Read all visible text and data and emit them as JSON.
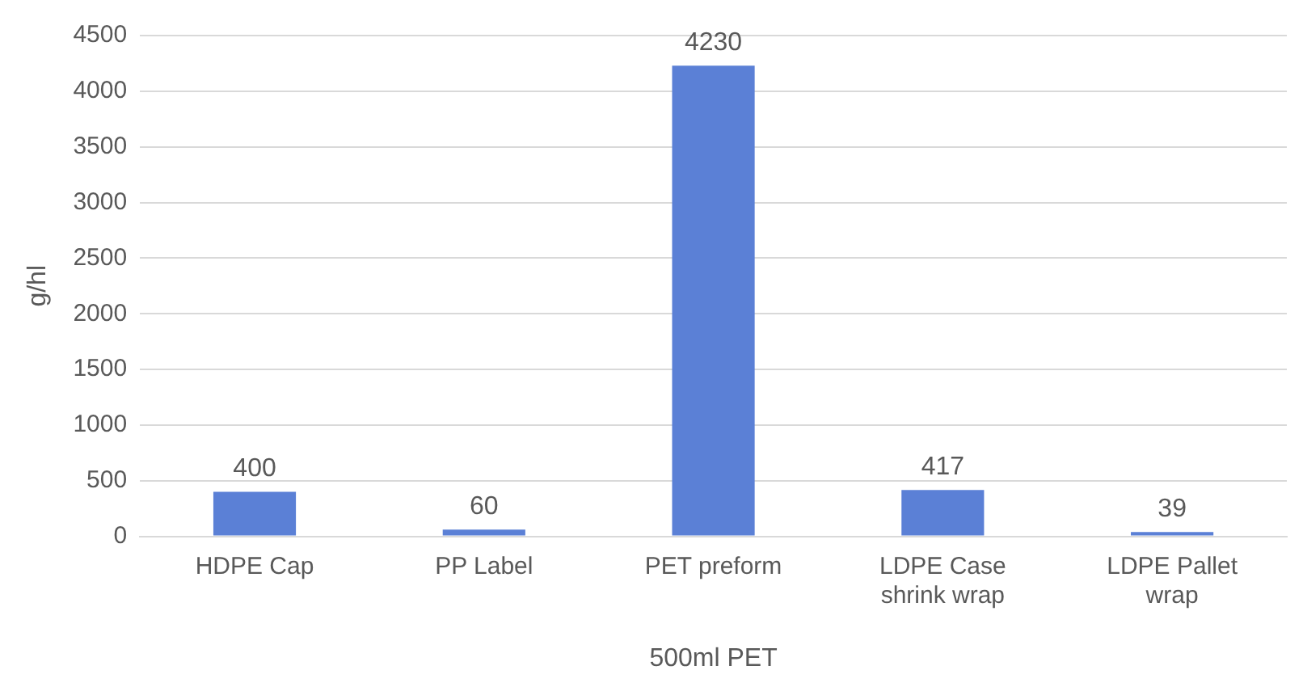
{
  "chart_data": {
    "type": "bar",
    "xlabel": "500ml PET",
    "ylabel": "g/hl",
    "categories": [
      "HDPE Cap",
      "PP Label",
      "PET preform",
      "LDPE Case shrink wrap",
      "LDPE Pallet wrap"
    ],
    "values": [
      400,
      60,
      4230,
      417,
      39
    ],
    "color": "#5b80d6",
    "ylim": [
      0,
      4500
    ],
    "yticks": [
      0,
      500,
      1000,
      1500,
      2000,
      2500,
      3000,
      3500,
      4000,
      4500
    ],
    "grid": "y",
    "data_labels": true
  }
}
